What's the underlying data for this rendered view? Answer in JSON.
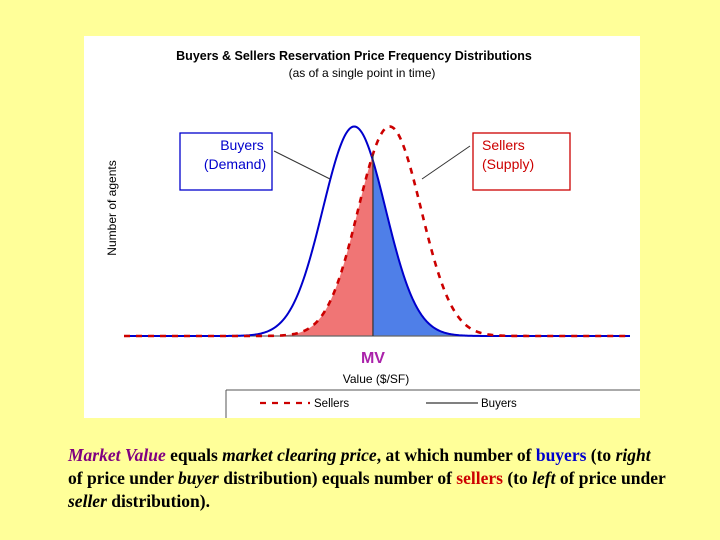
{
  "chart_data": {
    "type": "line",
    "title": "Buyers & Sellers Reservation Price Frequency Distributions",
    "subtitle": "(as of a single point in time)",
    "xlabel": "Value ($/SF)",
    "ylabel": "Number of agents",
    "xlim": [
      0,
      10
    ],
    "ylim": [
      0,
      1.05
    ],
    "series": [
      {
        "name": "Buyers",
        "role": "Demand",
        "distribution": "normal",
        "mean": 4.55,
        "sd": 0.62,
        "peak": 1.0,
        "style": "solid",
        "color": "#0000CC"
      },
      {
        "name": "Sellers",
        "role": "Supply",
        "distribution": "normal",
        "mean": 5.25,
        "sd": 0.62,
        "peak": 1.0,
        "style": "dashed",
        "color": "#CC0000"
      }
    ],
    "market_value": {
      "x": 4.92,
      "label": "MV"
    },
    "annotations": [
      {
        "series": "Buyers",
        "line1": "Buyers",
        "line2": "(Demand)"
      },
      {
        "series": "Sellers",
        "line1": "Sellers",
        "line2": "(Supply)"
      }
    ],
    "legend": {
      "position": "bottom",
      "entries": [
        "Sellers",
        "Buyers"
      ]
    }
  },
  "caption": {
    "s1": "Market Value",
    "s2": " equals ",
    "s3": "market clearing price",
    "s4": ", at which number of ",
    "s5": "buyers",
    "s6": " (to ",
    "s7": "right",
    "s8": " of price under ",
    "s9": "buyer",
    "s10": " distribution) equals number of ",
    "s11": "sellers",
    "s12": " (to ",
    "s13": "left",
    "s14": " of price under ",
    "s15": "seller",
    "s16": " distribution)."
  },
  "colors": {
    "background": "#FFFF99",
    "buyers": "#0000CC",
    "sellers": "#CC0000",
    "buyers_fill": "#4F7FE8",
    "sellers_fill": "#F07575",
    "mv_label": "#AA22AA"
  }
}
